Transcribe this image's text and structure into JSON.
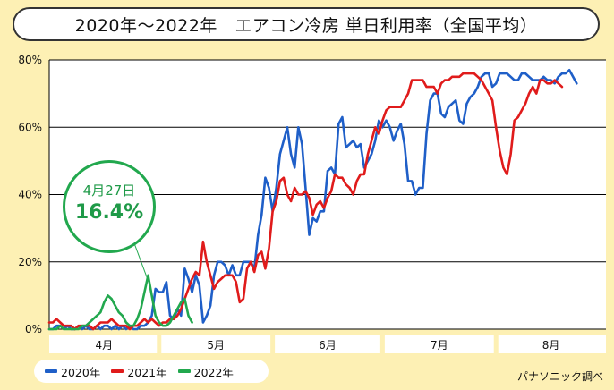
{
  "title": "2020年〜2022年　エアコン冷房 単日利用率（全国平均）",
  "source": "パナソニック調べ",
  "legend": [
    {
      "label": "2020年",
      "color": "#1f5fc8"
    },
    {
      "label": "2021年",
      "color": "#e01b1b"
    },
    {
      "label": "2022年",
      "color": "#22a84e"
    }
  ],
  "callout": {
    "date": "4月27日",
    "value": "16.4%"
  },
  "chart_data": {
    "type": "line",
    "title": "2020年〜2022年　エアコン冷房 単日利用率（全国平均）",
    "xlabel": "",
    "ylabel": "",
    "ylim": [
      0,
      80
    ],
    "y_ticks": [
      "0%",
      "20%",
      "40%",
      "60%",
      "80%"
    ],
    "month_labels": [
      "4月",
      "5月",
      "6月",
      "7月",
      "8月"
    ],
    "x_unit": "day index from 4月1日 (0–152)",
    "series": [
      {
        "name": "2020年",
        "color": "#1f5fc8",
        "values": [
          0,
          0,
          1,
          1,
          0,
          1,
          0,
          0,
          1,
          0,
          1,
          0,
          0,
          1,
          0,
          1,
          1,
          0,
          1,
          0,
          1,
          0,
          1,
          0,
          0,
          1,
          1,
          2,
          4,
          12,
          11,
          11,
          14,
          4,
          3,
          6,
          4,
          18,
          15,
          11,
          16,
          13,
          2,
          4,
          7,
          16,
          20,
          20,
          19,
          16,
          19,
          16,
          16,
          20,
          20,
          20,
          18,
          28,
          34,
          45,
          42,
          35,
          42,
          52,
          56,
          60,
          52,
          48,
          60,
          55,
          42,
          28,
          33,
          32,
          35,
          35,
          47,
          48,
          46,
          61,
          63,
          54,
          55,
          56,
          54,
          55,
          48,
          50,
          52,
          56,
          62,
          60,
          62,
          60,
          56,
          59,
          61,
          55,
          44,
          44,
          40,
          42,
          42,
          58,
          68,
          70,
          70,
          64,
          63,
          66,
          67,
          68,
          62,
          61,
          67,
          69,
          70,
          72,
          75,
          76,
          76,
          72,
          73,
          76,
          76,
          76,
          75,
          74,
          74,
          76,
          76,
          75,
          74,
          74,
          74,
          75,
          74,
          74,
          73,
          75,
          76,
          76,
          77,
          75,
          73
        ]
      },
      {
        "name": "2021年",
        "color": "#e01b1b",
        "values": [
          2,
          2,
          3,
          2,
          1,
          1,
          1,
          0,
          1,
          1,
          1,
          1,
          0,
          1,
          2,
          2,
          2,
          3,
          2,
          1,
          1,
          1,
          0,
          1,
          1,
          2,
          3,
          2,
          3,
          2,
          1,
          2,
          2,
          3,
          3,
          4,
          6,
          9,
          12,
          15,
          17,
          16,
          26,
          20,
          16,
          12,
          14,
          15,
          16,
          16,
          16,
          14,
          8,
          9,
          18,
          20,
          17,
          22,
          23,
          18,
          24,
          35,
          38,
          44,
          45,
          40,
          38,
          42,
          40,
          40,
          41,
          39,
          34,
          37,
          38,
          36,
          39,
          41,
          46,
          45,
          45,
          43,
          42,
          40,
          44,
          46,
          46,
          52,
          56,
          60,
          58,
          62,
          65,
          66,
          66,
          66,
          66,
          68,
          70,
          74,
          74,
          74,
          74,
          72,
          72,
          72,
          70,
          73,
          74,
          74,
          75,
          75,
          75,
          76,
          76,
          76,
          76,
          75,
          74,
          72,
          70,
          68,
          60,
          53,
          48,
          46,
          52,
          62,
          63,
          65,
          67,
          70,
          72,
          70,
          74,
          74,
          73,
          73,
          74,
          73,
          72
        ]
      },
      {
        "name": "2022年",
        "color": "#22a84e",
        "values": [
          0,
          0,
          0,
          1,
          0,
          0,
          0,
          0,
          0,
          1,
          1,
          2,
          3,
          4,
          5,
          8,
          10,
          9,
          7,
          5,
          4,
          2,
          1,
          1,
          3,
          6,
          11,
          16,
          10,
          4,
          2,
          1,
          1,
          2,
          4,
          6,
          8,
          9,
          4,
          2
        ]
      }
    ]
  }
}
